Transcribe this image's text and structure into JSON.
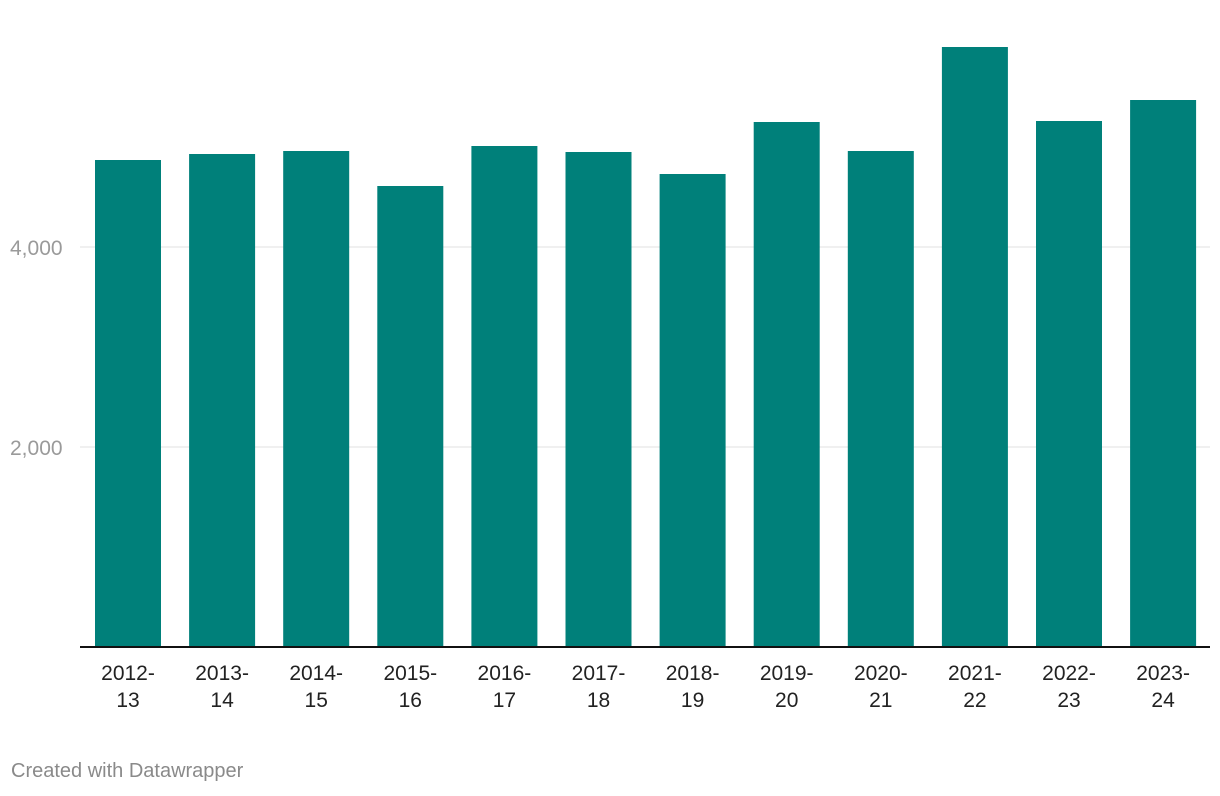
{
  "chart_data": {
    "type": "bar",
    "categories": [
      [
        "2012-",
        "13"
      ],
      [
        "2013-",
        "14"
      ],
      [
        "2014-",
        "15"
      ],
      [
        "2015-",
        "16"
      ],
      [
        "2016-",
        "17"
      ],
      [
        "2017-",
        "18"
      ],
      [
        "2018-",
        "19"
      ],
      [
        "2019-",
        "20"
      ],
      [
        "2020-",
        "21"
      ],
      [
        "2021-",
        "22"
      ],
      [
        "2022-",
        "23"
      ],
      [
        "2023-",
        "24"
      ]
    ],
    "values": [
      4870,
      4930,
      4960,
      4610,
      5010,
      4950,
      4730,
      5250,
      4960,
      6000,
      5260,
      5470
    ],
    "ylim": [
      0,
      6000
    ],
    "yticks": [
      {
        "value": 2000,
        "label": "2,000"
      },
      {
        "value": 4000,
        "label": "4,000"
      }
    ],
    "grid": true,
    "bar_color": "#00807a"
  },
  "footer": {
    "credit": "Created with Datawrapper"
  }
}
